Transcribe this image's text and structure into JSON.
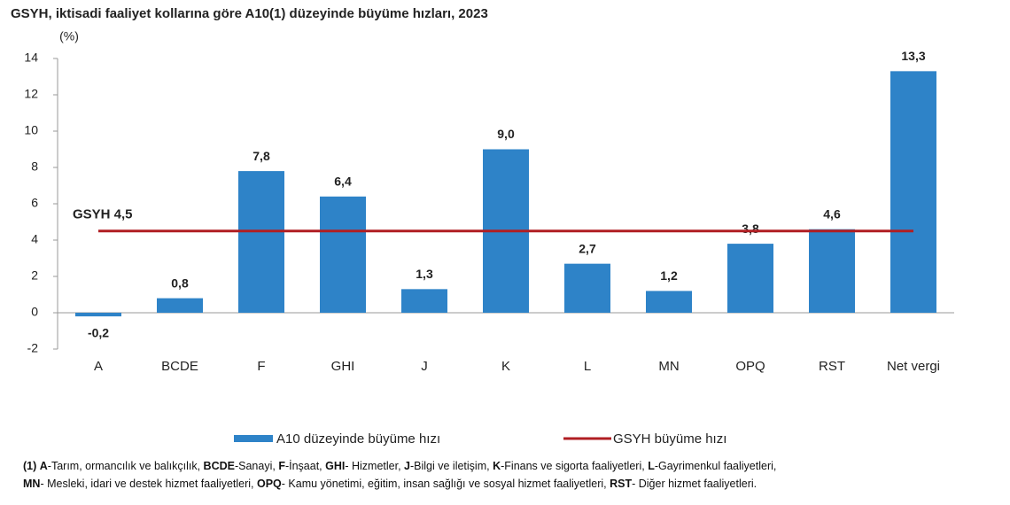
{
  "chart_data": {
    "type": "bar",
    "title": "GSYH, iktisadi faaliyet kollarına göre A10(1) düzeyinde büyüme hızları, 2023",
    "y_label": "(%)",
    "categories": [
      "A",
      "BCDE",
      "F",
      "GHI",
      "J",
      "K",
      "L",
      "MN",
      "OPQ",
      "RST",
      "Net vergi"
    ],
    "series": [
      {
        "name": "A10 düzeyinde büyüme hızı",
        "color": "#2e83c8",
        "values": [
          -0.2,
          0.8,
          7.8,
          6.4,
          1.3,
          9.0,
          2.7,
          1.2,
          3.8,
          4.6,
          13.3
        ],
        "value_labels": [
          "-0,2",
          "0,8",
          "7,8",
          "6,4",
          "1,3",
          "9,0",
          "2,7",
          "1,2",
          "3,8",
          "4,6",
          "13,3"
        ]
      }
    ],
    "reference": {
      "name": "GSYH büyüme hızı",
      "value": 4.5,
      "label": "GSYH 4,5",
      "color": "#b01e23"
    },
    "ylim": [
      -2,
      14
    ],
    "yticks": [
      -2,
      0,
      2,
      4,
      6,
      8,
      10,
      12,
      14
    ],
    "grid": false,
    "legend": "bottom",
    "footnote": {
      "marker": "(1)",
      "lines": [
        [
          {
            "code": "A",
            "text": "-Tarım, ormancılık ve balıkçılık,"
          },
          {
            "code": "BCDE",
            "text": "-Sanayi,"
          },
          {
            "code": "F",
            "text": "-İnşaat,"
          },
          {
            "code": "GHI",
            "text": "- Hizmetler,"
          },
          {
            "code": "J",
            "text": "-Bilgi ve iletişim,"
          },
          {
            "code": "K",
            "text": "-Finans ve sigorta faaliyetleri,"
          },
          {
            "code": "L",
            "text": "-Gayrimenkul faaliyetleri,"
          }
        ],
        [
          {
            "code": "MN",
            "text": "- Mesleki, idari ve destek hizmet faaliyetleri,"
          },
          {
            "code": "OPQ",
            "text": "- Kamu yönetimi, eğitim, insan sağlığı ve sosyal hizmet faaliyetleri,"
          },
          {
            "code": "RST",
            "text": "- Diğer hizmet faaliyetleri."
          }
        ]
      ]
    }
  }
}
